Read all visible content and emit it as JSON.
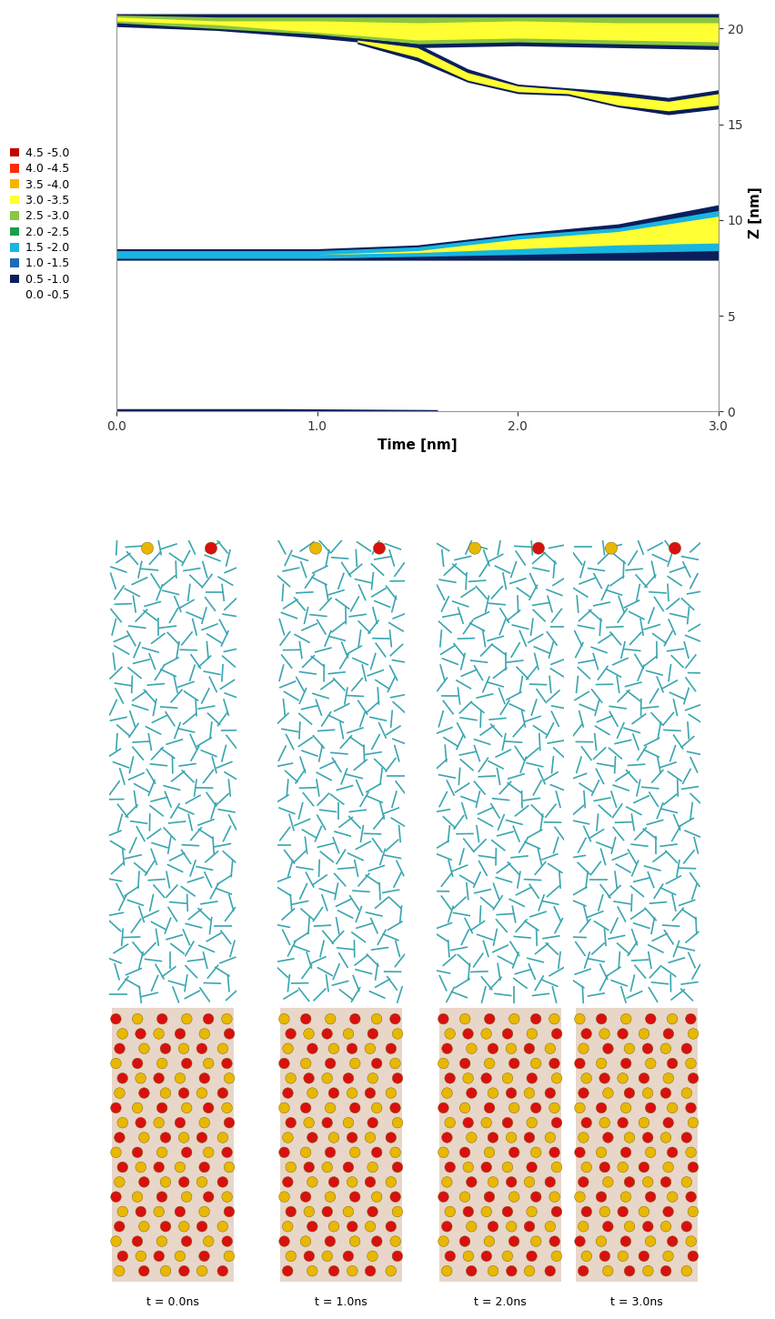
{
  "chart_data": {
    "type": "contour",
    "xlabel": "Time [nm]",
    "ylabel": "Z [nm]",
    "xlim": [
      0,
      3.0
    ],
    "xticks": [
      {
        "value": 0,
        "label": "0.0"
      },
      {
        "value": 1,
        "label": "1.0"
      },
      {
        "value": 2,
        "label": "2.0"
      },
      {
        "value": 3,
        "label": "3.0"
      }
    ],
    "ylim": [
      0,
      20.8
    ],
    "yticks": [
      0,
      5,
      10,
      15,
      20
    ],
    "legend": "center left",
    "color_bins": [
      {
        "label": "4.5 -5.0",
        "range": [
          4.5,
          5.0
        ],
        "color": "#c00000"
      },
      {
        "label": "4.0 -4.5",
        "range": [
          4.0,
          4.5
        ],
        "color": "#ff2a00"
      },
      {
        "label": "3.5 -4.0",
        "range": [
          3.5,
          4.0
        ],
        "color": "#f7b500"
      },
      {
        "label": "3.0 -3.5",
        "range": [
          3.0,
          3.5
        ],
        "color": "#ffff33"
      },
      {
        "label": "2.5 -3.0",
        "range": [
          2.5,
          3.0
        ],
        "color": "#8cc63f"
      },
      {
        "label": "2.0 -2.5",
        "range": [
          2.0,
          2.5
        ],
        "color": "#1a9e4a"
      },
      {
        "label": "1.5 -2.0",
        "range": [
          1.5,
          2.0
        ],
        "color": "#19b5e0"
      },
      {
        "label": "1.0 -1.5",
        "range": [
          1.0,
          1.5
        ],
        "color": "#1f6bb5"
      },
      {
        "label": "0.5 -1.0",
        "range": [
          0.5,
          1.0
        ],
        "color": "#0a1f5c"
      },
      {
        "label": "0.0 -0.5",
        "range": [
          0.0,
          0.5
        ],
        "color": "#ffffff"
      }
    ],
    "bands": [
      {
        "time": [
          0,
          0.5,
          1.0,
          1.5,
          2.0,
          2.5,
          3.0
        ],
        "layers": [
          {
            "density": 0.75,
            "z_low": [
              20.1,
              19.9,
              19.5,
              19.0,
              19.1,
              19.0,
              18.9
            ],
            "z_high": [
              20.8,
              20.8,
              20.8,
              20.8,
              20.8,
              20.8,
              20.8
            ]
          },
          {
            "density": 2.75,
            "z_low": [
              20.3,
              20.0,
              19.7,
              19.2,
              19.3,
              19.2,
              19.1
            ],
            "z_high": [
              20.7,
              20.6,
              20.6,
              20.6,
              20.6,
              20.6,
              20.6
            ]
          },
          {
            "density": 3.25,
            "z_low": [
              20.4,
              20.2,
              19.8,
              19.4,
              19.5,
              19.4,
              19.3
            ],
            "z_high": [
              20.6,
              20.4,
              20.4,
              20.3,
              20.4,
              20.3,
              20.3
            ]
          }
        ]
      },
      {
        "time": [
          1.2,
          1.5,
          1.75,
          2.0,
          2.25,
          2.5,
          2.75,
          3.0
        ],
        "layers": [
          {
            "density": 0.75,
            "z_low": [
              19.2,
              18.3,
              17.2,
              16.6,
              16.5,
              15.9,
              15.5,
              15.8
            ],
            "z_high": [
              19.5,
              19.2,
              17.9,
              17.1,
              16.9,
              16.7,
              16.4,
              16.8
            ]
          },
          {
            "density": 3.25,
            "z_low": [
              19.3,
              18.5,
              17.3,
              16.7,
              16.6,
              16.0,
              15.7,
              16.0
            ],
            "z_high": [
              19.4,
              19.0,
              17.7,
              17.0,
              16.8,
              16.5,
              16.2,
              16.6
            ]
          }
        ]
      },
      {
        "time": [
          0,
          0.5,
          1.0,
          1.5,
          2.0,
          2.5,
          3.0
        ],
        "layers": [
          {
            "density": 0.75,
            "z_low": [
              7.9,
              7.9,
              7.9,
              7.9,
              7.9,
              7.9,
              7.9
            ],
            "z_high": [
              8.5,
              8.5,
              8.5,
              8.7,
              9.3,
              9.8,
              10.8
            ]
          },
          {
            "density": 1.75,
            "z_low": [
              8.0,
              8.0,
              8.0,
              8.1,
              8.2,
              8.3,
              8.4
            ],
            "z_high": [
              8.4,
              8.4,
              8.4,
              8.6,
              9.2,
              9.6,
              10.5
            ]
          },
          {
            "density": 3.25,
            "z_low": [
              8.2,
              8.2,
              8.2,
              8.3,
              8.5,
              8.7,
              8.8
            ],
            "z_high": [
              8.2,
              8.2,
              8.2,
              8.4,
              9.0,
              9.4,
              10.2
            ]
          }
        ]
      },
      {
        "time": [
          0,
          0.8,
          1.6
        ],
        "layers": [
          {
            "density": 0.75,
            "z_low": [
              0.0,
              0.0,
              0.0
            ],
            "z_high": [
              0.15,
              0.15,
              0.1
            ]
          }
        ]
      }
    ],
    "snapshots": [
      "t = 0.0ns",
      "t = 1.0ns",
      "t = 2.0ns",
      "t = 3.0ns"
    ]
  }
}
